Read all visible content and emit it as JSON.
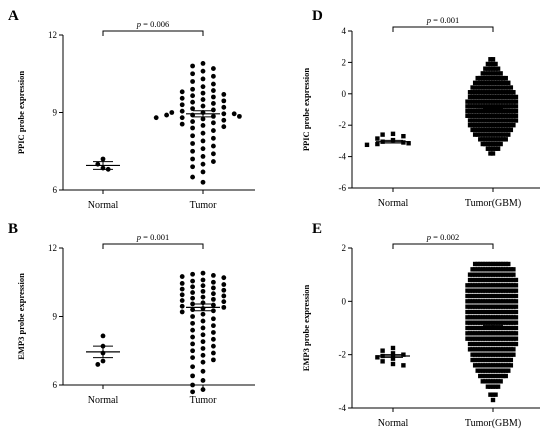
{
  "chart_data": [
    {
      "id": "A",
      "type": "scatter",
      "panel_label": "A",
      "ylabel": "PPIC probe expression",
      "ylim": [
        6,
        12
      ],
      "yticks": [
        6,
        9,
        12
      ],
      "categories": [
        "Normal",
        "Tumor"
      ],
      "p_prefix": "p",
      "p_value": "= 0.006",
      "marker": "circle",
      "series": [
        {
          "category": "Normal",
          "mean": 6.95,
          "sem": 0.15,
          "values": [
            7.2,
            7.0,
            6.85,
            6.8
          ]
        },
        {
          "category": "Tumor",
          "mean": 8.95,
          "sem": 0.12,
          "values": [
            10.9,
            10.8,
            10.7,
            10.6,
            10.5,
            10.4,
            10.3,
            10.2,
            10.1,
            10.0,
            9.9,
            9.85,
            9.8,
            9.75,
            9.7,
            9.65,
            9.6,
            9.55,
            9.5,
            9.45,
            9.4,
            9.35,
            9.3,
            9.25,
            9.2,
            9.15,
            9.1,
            9.05,
            9.0,
            9.0,
            8.95,
            8.95,
            8.9,
            8.9,
            8.85,
            8.85,
            8.8,
            8.8,
            8.75,
            8.7,
            8.65,
            8.6,
            8.55,
            8.5,
            8.45,
            8.4,
            8.3,
            8.2,
            8.1,
            8.0,
            7.9,
            7.8,
            7.7,
            7.6,
            7.5,
            7.4,
            7.3,
            7.2,
            7.1,
            7.0,
            6.9,
            6.7,
            6.5,
            6.3
          ]
        }
      ]
    },
    {
      "id": "B",
      "type": "scatter",
      "panel_label": "B",
      "ylabel": "EMP3 probe expression",
      "ylim": [
        6,
        12
      ],
      "yticks": [
        6,
        9,
        12
      ],
      "categories": [
        "Normal",
        "Tumor"
      ],
      "p_prefix": "p",
      "p_value": "= 0.001",
      "marker": "circle",
      "series": [
        {
          "category": "Normal",
          "mean": 7.45,
          "sem": 0.25,
          "values": [
            8.15,
            7.7,
            7.4,
            7.05,
            6.9
          ]
        },
        {
          "category": "Tumor",
          "mean": 9.4,
          "sem": 0.15,
          "values": [
            10.9,
            10.85,
            10.8,
            10.75,
            10.7,
            10.6,
            10.55,
            10.5,
            10.45,
            10.4,
            10.35,
            10.3,
            10.25,
            10.2,
            10.15,
            10.1,
            10.05,
            10.0,
            9.95,
            9.9,
            9.85,
            9.8,
            9.75,
            9.7,
            9.65,
            9.6,
            9.55,
            9.5,
            9.45,
            9.4,
            9.35,
            9.3,
            9.25,
            9.2,
            9.1,
            9.0,
            8.9,
            8.8,
            8.7,
            8.6,
            8.5,
            8.4,
            8.3,
            8.2,
            8.1,
            8.0,
            7.9,
            7.8,
            7.7,
            7.6,
            7.5,
            7.4,
            7.3,
            7.2,
            7.1,
            7.0,
            6.8,
            6.6,
            6.4,
            6.2,
            6.0,
            5.8,
            5.7
          ]
        }
      ]
    },
    {
      "id": "D",
      "type": "scatter",
      "panel_label": "D",
      "ylabel": "PPIC probe expression",
      "ylim": [
        -6,
        4
      ],
      "yticks": [
        -6,
        -4,
        -2,
        0,
        2,
        4
      ],
      "categories": [
        "Normal",
        "Tumor(GBM)"
      ],
      "p_prefix": "p",
      "p_value": "= 0.001",
      "marker": "square",
      "series": [
        {
          "category": "Normal",
          "mean": -3.05,
          "sem": 0.08,
          "values": [
            -2.55,
            -2.6,
            -2.7,
            -2.85,
            -2.95,
            -3.05,
            -3.1,
            -3.15,
            -3.2,
            -3.25
          ]
        },
        {
          "category": "Tumor(GBM)",
          "mean": -1.0,
          "sem": 0.05,
          "bands": [
            {
              "y": 2.2,
              "n": 2
            },
            {
              "y": 1.9,
              "n": 4
            },
            {
              "y": 1.6,
              "n": 6
            },
            {
              "y": 1.3,
              "n": 8
            },
            {
              "y": 1.0,
              "n": 12
            },
            {
              "y": 0.7,
              "n": 14
            },
            {
              "y": 0.4,
              "n": 16
            },
            {
              "y": 0.1,
              "n": 18
            },
            {
              "y": -0.2,
              "n": 19
            },
            {
              "y": -0.5,
              "n": 20
            },
            {
              "y": -0.8,
              "n": 20
            },
            {
              "y": -1.1,
              "n": 20
            },
            {
              "y": -1.4,
              "n": 20
            },
            {
              "y": -1.7,
              "n": 19
            },
            {
              "y": -2.0,
              "n": 18
            },
            {
              "y": -2.3,
              "n": 16
            },
            {
              "y": -2.6,
              "n": 14
            },
            {
              "y": -2.9,
              "n": 11
            },
            {
              "y": -3.2,
              "n": 8
            },
            {
              "y": -3.5,
              "n": 5
            },
            {
              "y": -3.8,
              "n": 2
            }
          ]
        }
      ]
    },
    {
      "id": "E",
      "type": "scatter",
      "panel_label": "E",
      "ylabel": "EMP3 probe expression",
      "ylim": [
        -4,
        2
      ],
      "yticks": [
        -4,
        -2,
        0,
        2
      ],
      "categories": [
        "Normal",
        "Tumor(GBM)"
      ],
      "p_prefix": "p",
      "p_value": "= 0.002",
      "marker": "square",
      "series": [
        {
          "category": "Normal",
          "mean": -2.05,
          "sem": 0.05,
          "values": [
            -1.75,
            -1.85,
            -1.95,
            -2.0,
            -2.05,
            -2.1,
            -2.15,
            -2.25,
            -2.35,
            -2.4
          ]
        },
        {
          "category": "Tumor(GBM)",
          "mean": -0.95,
          "sem": 0.05,
          "bands": [
            {
              "y": 1.4,
              "n": 14
            },
            {
              "y": 1.2,
              "n": 17
            },
            {
              "y": 1.0,
              "n": 18
            },
            {
              "y": 0.8,
              "n": 19
            },
            {
              "y": 0.6,
              "n": 20
            },
            {
              "y": 0.4,
              "n": 20
            },
            {
              "y": 0.2,
              "n": 20
            },
            {
              "y": 0.0,
              "n": 20
            },
            {
              "y": -0.2,
              "n": 20
            },
            {
              "y": -0.4,
              "n": 20
            },
            {
              "y": -0.6,
              "n": 20
            },
            {
              "y": -0.8,
              "n": 20
            },
            {
              "y": -1.0,
              "n": 20
            },
            {
              "y": -1.2,
              "n": 20
            },
            {
              "y": -1.4,
              "n": 20
            },
            {
              "y": -1.6,
              "n": 19
            },
            {
              "y": -1.8,
              "n": 18
            },
            {
              "y": -2.0,
              "n": 17
            },
            {
              "y": -2.2,
              "n": 16
            },
            {
              "y": -2.4,
              "n": 15
            },
            {
              "y": -2.6,
              "n": 13
            },
            {
              "y": -2.8,
              "n": 11
            },
            {
              "y": -3.0,
              "n": 8
            },
            {
              "y": -3.2,
              "n": 5
            },
            {
              "y": -3.5,
              "n": 3
            },
            {
              "y": -3.7,
              "n": 1
            }
          ]
        }
      ]
    }
  ]
}
